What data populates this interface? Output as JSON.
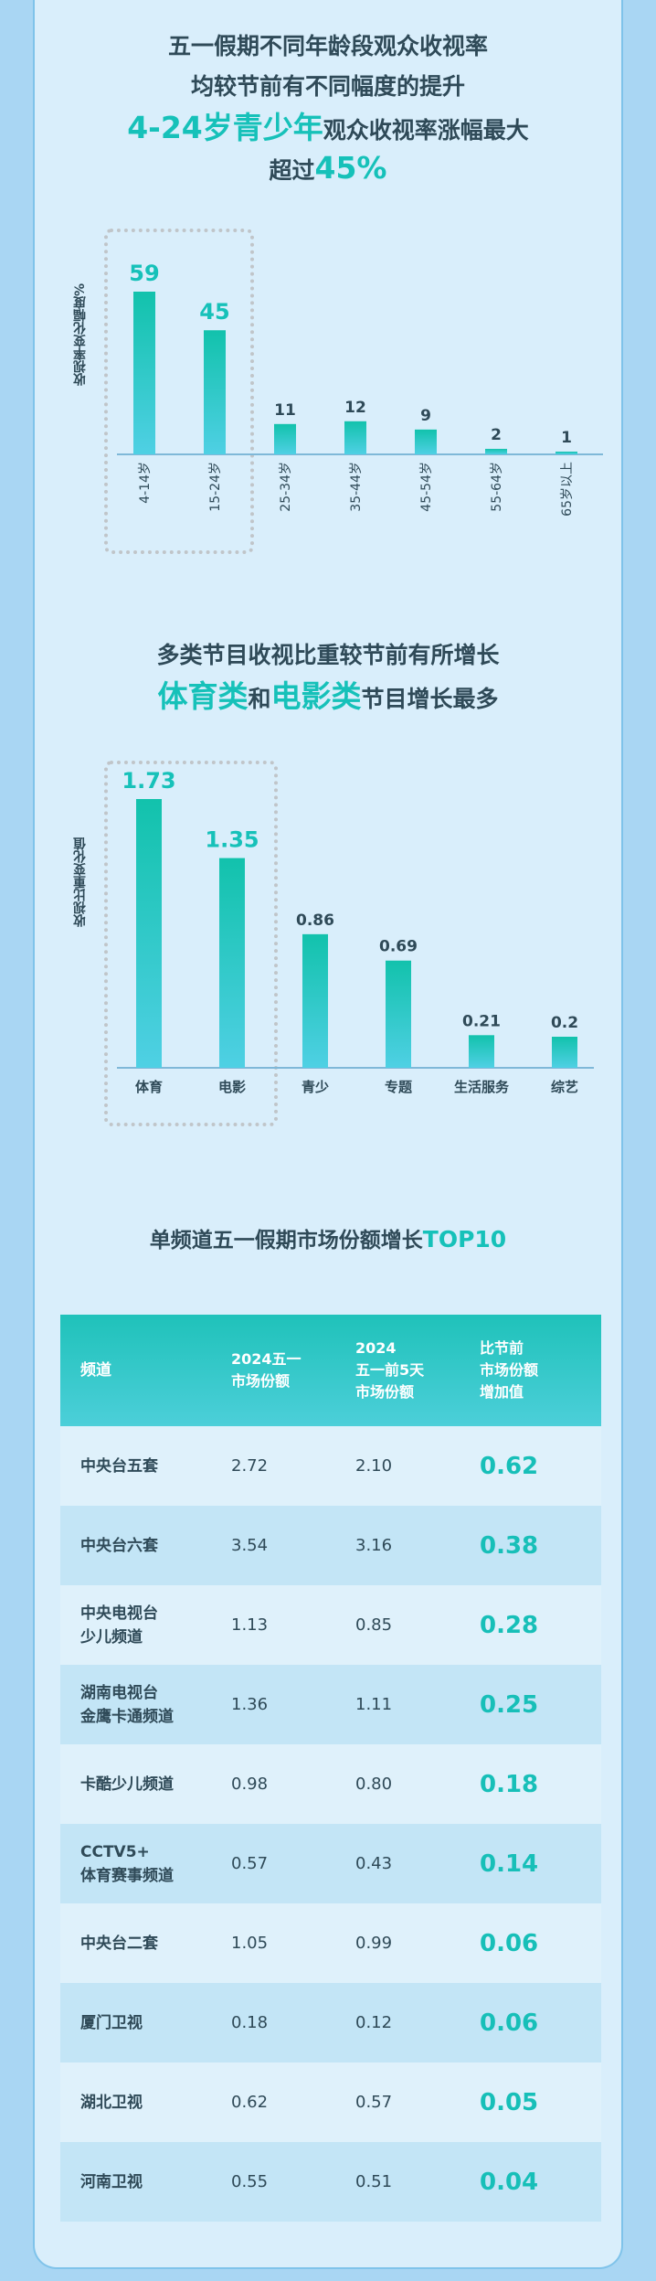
{
  "section1": {
    "line1": "五一假期不同年龄段观众收视率",
    "line2": "均较节前有不同幅度的提升",
    "line3_accent": "4-24岁青少年",
    "line3_rest": "观众收视率涨幅最大",
    "line4_pre": "超过",
    "line4_accent": "45%"
  },
  "section2": {
    "line1": "多类节目收视比重较节前有所增长",
    "line2_accent1": "体育类",
    "line2_mid": "和",
    "line2_accent2": "电影类",
    "line2_rest": "节目增长最多"
  },
  "table": {
    "title_pre": "单频道五一假期市场份额增长",
    "title_accent": "TOP10",
    "headers": [
      "频道",
      "2024五一\n市场份额",
      "2024\n五一前5天\n市场份额",
      "比节前\n市场份额\n增加值"
    ],
    "rows": [
      [
        "中央台五套",
        "2.72",
        "2.10",
        "0.62"
      ],
      [
        "中央台六套",
        "3.54",
        "3.16",
        "0.38"
      ],
      [
        "中央电视台\n少儿频道",
        "1.13",
        "0.85",
        "0.28"
      ],
      [
        "湖南电视台\n金鹰卡通频道",
        "1.36",
        "1.11",
        "0.25"
      ],
      [
        "卡酷少儿频道",
        "0.98",
        "0.80",
        "0.18"
      ],
      [
        "CCTV5+\n体育赛事频道",
        "0.57",
        "0.43",
        "0.14"
      ],
      [
        "中央台二套",
        "1.05",
        "0.99",
        "0.06"
      ],
      [
        "厦门卫视",
        "0.18",
        "0.12",
        "0.06"
      ],
      [
        "湖北卫视",
        "0.62",
        "0.57",
        "0.05"
      ],
      [
        "河南卫视",
        "0.55",
        "0.51",
        "0.04"
      ]
    ]
  },
  "colors": {
    "accent": "#16c1b9",
    "bar_top": "#12c2ac",
    "bar_bottom": "#4fd0e4",
    "panel": "#d9eefb",
    "background": "#a9d6f3"
  },
  "chart_data": [
    {
      "type": "bar",
      "ylabel": "收视率变化幅度%",
      "categories": [
        "4-14岁",
        "15-24岁",
        "25-34岁",
        "35-44岁",
        "45-54岁",
        "55-64岁",
        "65岁以上"
      ],
      "values": [
        59,
        45,
        11,
        12,
        9,
        2,
        1
      ],
      "highlight": [
        0,
        1
      ],
      "grid": false
    },
    {
      "type": "bar",
      "ylabel": "收视比重变化值",
      "categories": [
        "体育",
        "电影",
        "青少",
        "专题",
        "生活服务",
        "综艺"
      ],
      "values": [
        1.73,
        1.35,
        0.86,
        0.69,
        0.21,
        0.2
      ],
      "highlight": [
        0,
        1
      ],
      "grid": false
    }
  ]
}
